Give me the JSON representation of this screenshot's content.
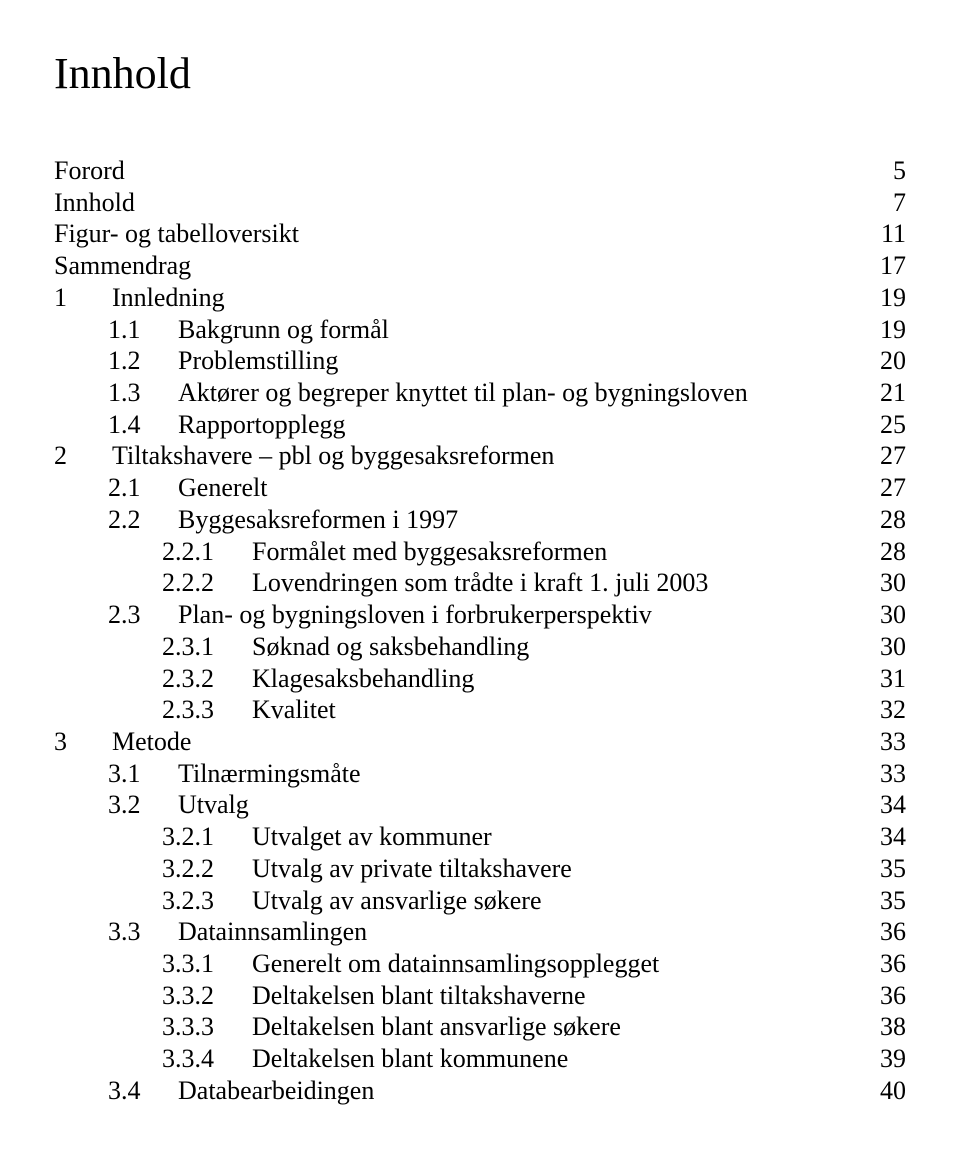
{
  "title": "Innhold",
  "text_color": "#000000",
  "background_color": "#ffffff",
  "title_fontsize": 44,
  "body_fontsize": 26,
  "font_family": "Times New Roman",
  "entries": [
    {
      "indent": 0,
      "prefix": "",
      "label": "Forord",
      "page": "5"
    },
    {
      "indent": 0,
      "prefix": "",
      "label": "Innhold",
      "page": "7"
    },
    {
      "indent": 0,
      "prefix": "",
      "label": "Figur- og tabelloversikt",
      "page": "11"
    },
    {
      "indent": 0,
      "prefix": "",
      "label": "Sammendrag",
      "page": "17"
    },
    {
      "indent": 1,
      "prefix": "1",
      "label": "Innledning",
      "page": "19"
    },
    {
      "indent": 2,
      "prefix": "1.1",
      "label": "Bakgrunn og formål",
      "page": "19"
    },
    {
      "indent": 2,
      "prefix": "1.2",
      "label": "Problemstilling",
      "page": "20"
    },
    {
      "indent": 2,
      "prefix": "1.3",
      "label": "Aktører og begreper knyttet til plan- og bygningsloven",
      "page": "21"
    },
    {
      "indent": 2,
      "prefix": "1.4",
      "label": "Rapportopplegg",
      "page": "25"
    },
    {
      "indent": 1,
      "prefix": "2",
      "label": "Tiltakshavere – pbl og byggesaksreformen",
      "page": "27"
    },
    {
      "indent": 2,
      "prefix": "2.1",
      "label": "Generelt",
      "page": "27"
    },
    {
      "indent": 2,
      "prefix": "2.2",
      "label": "Byggesaksreformen i 1997",
      "page": "28"
    },
    {
      "indent": 3,
      "prefix": "2.2.1",
      "label": "Formålet med byggesaksreformen",
      "page": "28"
    },
    {
      "indent": 3,
      "prefix": "2.2.2",
      "label": "Lovendringen som trådte i kraft 1. juli 2003",
      "page": "30"
    },
    {
      "indent": 2,
      "prefix": "2.3",
      "label": "Plan- og bygningsloven i forbrukerperspektiv",
      "page": "30"
    },
    {
      "indent": 3,
      "prefix": "2.3.1",
      "label": "Søknad og saksbehandling",
      "page": "30"
    },
    {
      "indent": 3,
      "prefix": "2.3.2",
      "label": "Klagesaksbehandling",
      "page": "31"
    },
    {
      "indent": 3,
      "prefix": "2.3.3",
      "label": "Kvalitet",
      "page": "32"
    },
    {
      "indent": 1,
      "prefix": "3",
      "label": "Metode",
      "page": "33"
    },
    {
      "indent": 2,
      "prefix": "3.1",
      "label": "Tilnærmingsmåte",
      "page": "33"
    },
    {
      "indent": 2,
      "prefix": "3.2",
      "label": "Utvalg",
      "page": "34"
    },
    {
      "indent": 3,
      "prefix": "3.2.1",
      "label": "Utvalget av kommuner",
      "page": "34"
    },
    {
      "indent": 3,
      "prefix": "3.2.2",
      "label": "Utvalg av private tiltakshavere",
      "page": "35"
    },
    {
      "indent": 3,
      "prefix": "3.2.3",
      "label": "Utvalg av ansvarlige søkere",
      "page": "35"
    },
    {
      "indent": 2,
      "prefix": "3.3",
      "label": "Datainnsamlingen",
      "page": "36"
    },
    {
      "indent": 3,
      "prefix": "3.3.1",
      "label": "Generelt om datainnsamlingsopplegget",
      "page": "36"
    },
    {
      "indent": 3,
      "prefix": "3.3.2",
      "label": "Deltakelsen blant tiltakshaverne",
      "page": "36"
    },
    {
      "indent": 3,
      "prefix": "3.3.3",
      "label": "Deltakelsen blant ansvarlige søkere",
      "page": "38"
    },
    {
      "indent": 3,
      "prefix": "3.3.4",
      "label": "Deltakelsen blant kommunene",
      "page": "39"
    },
    {
      "indent": 2,
      "prefix": "3.4",
      "label": "Databearbeidingen",
      "page": "40"
    }
  ]
}
